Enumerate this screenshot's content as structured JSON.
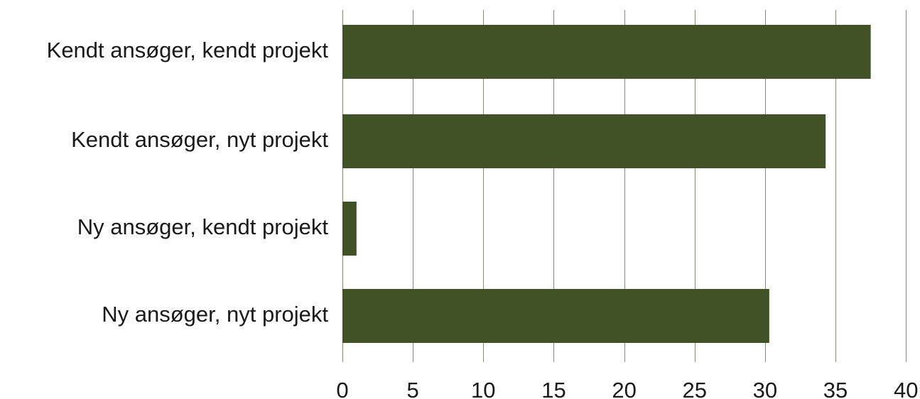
{
  "chart_data": {
    "type": "bar",
    "orientation": "horizontal",
    "categories": [
      "Kendt ansøger, kendt projekt",
      "Kendt ansøger, nyt projekt",
      "Ny ansøger, kendt projekt",
      "Ny ansøger, nyt projekt"
    ],
    "values": [
      37.5,
      34.3,
      1.0,
      30.3
    ],
    "xticks": [
      0,
      5,
      10,
      15,
      20,
      25,
      30,
      35,
      40
    ],
    "xlim": [
      0,
      42
    ],
    "grid": "vertical",
    "legend": "none",
    "bar_color": "#415326",
    "grid_color": "#8a8a76",
    "title": "",
    "xlabel": "",
    "ylabel": ""
  }
}
